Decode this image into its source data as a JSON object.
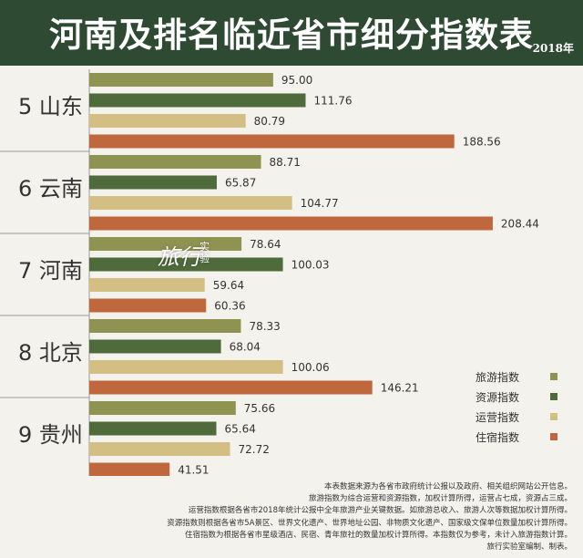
{
  "header": {
    "title": "河南及排名临近省市细分指数表",
    "year": "2018年"
  },
  "watermark": {
    "main": "旅行",
    "sub": "实验"
  },
  "colors": {
    "旅游指数": "#8f9352",
    "资源指数": "#4f6b3c",
    "运营指数": "#d3bf83",
    "住宿指数": "#c0683d",
    "header_bg": "#2e4a33"
  },
  "chart_data": {
    "type": "bar",
    "orientation": "horizontal",
    "categories": [
      "5 山东",
      "6 云南",
      "7 河南",
      "8 北京",
      "9 贵州"
    ],
    "series": [
      {
        "name": "旅游指数",
        "values": [
          95.0,
          88.71,
          78.64,
          78.33,
          75.66
        ]
      },
      {
        "name": "资源指数",
        "values": [
          111.76,
          65.87,
          100.03,
          68.04,
          65.64
        ]
      },
      {
        "name": "运营指数",
        "values": [
          80.79,
          104.77,
          59.64,
          100.06,
          72.72
        ]
      },
      {
        "name": "住宿指数",
        "values": [
          188.56,
          208.44,
          60.36,
          146.21,
          41.51
        ]
      }
    ],
    "value_labels_decimals": 2,
    "xlim": [
      0,
      230
    ],
    "grid": false,
    "legend_position": "bottom-right"
  },
  "footnotes": [
    "本表数据来源为各省市政府统计公报以及政府、相关组织网站公开信息。",
    "旅游指数为综合运营和资源指数，加权计算所得，运营占七成，资源占三成。",
    "运营指数根据各省市2018年统计公报中全年旅游产业关键数据。如旅游总收入、旅游人次等数据加权计算所得。",
    "资源指数则根据各省市5A景区、世界文化遗产、世界地址公园、非物质文化遗产、国家级文保单位数量加权计算所得。",
    "住宿指数为根据各省市星级酒店、民宿、青年旅社的数量加权计算所得。本指数仅为参考，未计入旅游指数计算。",
    "旅行实验室编制、制表。"
  ]
}
